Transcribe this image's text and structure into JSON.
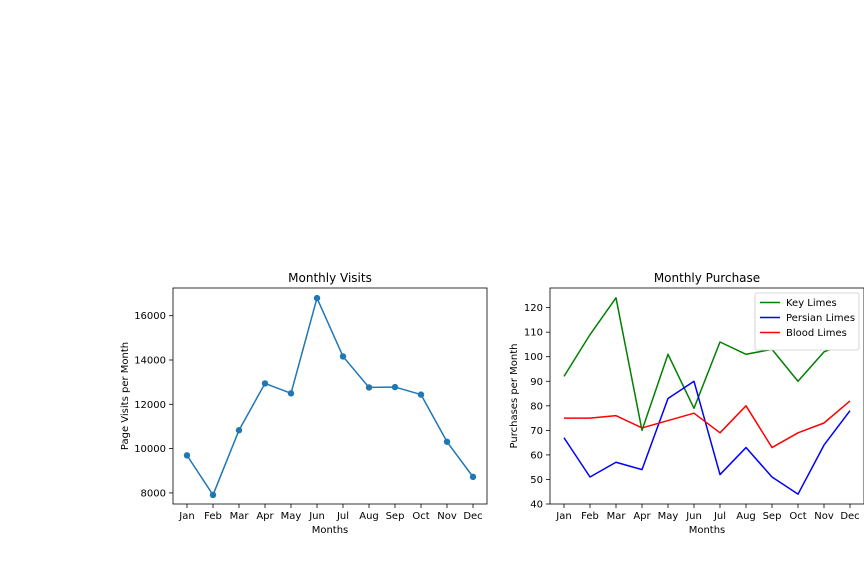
{
  "chart_data": [
    {
      "type": "line",
      "title": "Monthly Visits",
      "xlabel": "Months",
      "ylabel": "Page Visits per Month",
      "categories": [
        "Jan",
        "Feb",
        "Mar",
        "Apr",
        "May",
        "Jun",
        "Jul",
        "Aug",
        "Sep",
        "Oct",
        "Nov",
        "Dec"
      ],
      "series": [
        {
          "values": [
            9695,
            7909,
            10831,
            12942,
            12495,
            16794,
            14161,
            12762,
            12777,
            12439,
            10309,
            8724
          ],
          "color": "#1f77b4",
          "marker": "circle"
        }
      ],
      "ylim": [
        7500,
        17250
      ],
      "yticks": [
        8000,
        10000,
        12000,
        14000,
        16000
      ],
      "grid": false,
      "legend": "none"
    },
    {
      "type": "line",
      "title": "Monthly Purchase",
      "xlabel": "Months",
      "ylabel": "Purchases per Month",
      "categories": [
        "Jan",
        "Feb",
        "Mar",
        "Apr",
        "May",
        "Jun",
        "Jul",
        "Aug",
        "Sep",
        "Oct",
        "Nov",
        "Dec"
      ],
      "series": [
        {
          "name": "Key Limes",
          "values": [
            92,
            109,
            124,
            70,
            101,
            79,
            106,
            101,
            103,
            90,
            102,
            106
          ],
          "color": "#008000"
        },
        {
          "name": "Persian Limes",
          "values": [
            67,
            51,
            57,
            54,
            83,
            90,
            52,
            63,
            51,
            44,
            64,
            78
          ],
          "color": "#0000ff"
        },
        {
          "name": "Blood Limes",
          "values": [
            75,
            75,
            76,
            71,
            74,
            77,
            69,
            80,
            63,
            69,
            73,
            82
          ],
          "color": "#ff0000"
        }
      ],
      "ylim": [
        40,
        128
      ],
      "yticks": [
        40,
        50,
        60,
        70,
        80,
        90,
        100,
        110,
        120
      ],
      "grid": false,
      "legend": "top-right"
    }
  ]
}
